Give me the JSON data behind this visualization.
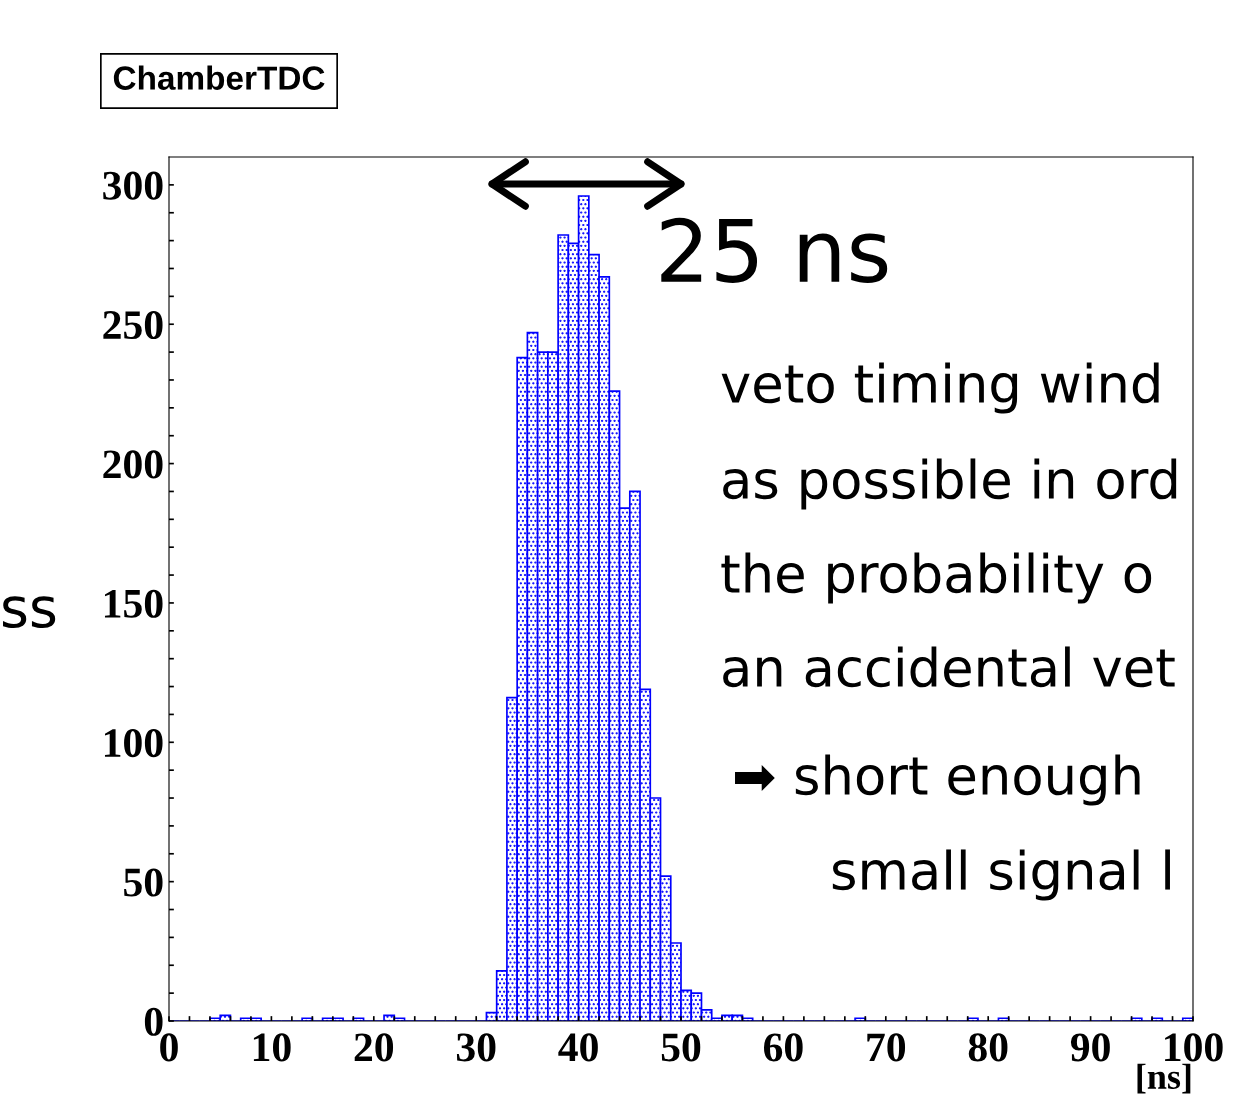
{
  "chart_data": {
    "type": "histogram",
    "title": "ChamberTDC",
    "xlabel": "[ns]",
    "bins": [
      0,
      1,
      2,
      3,
      4,
      5,
      6,
      7,
      8,
      9,
      10,
      11,
      12,
      13,
      14,
      15,
      16,
      17,
      18,
      19,
      20,
      21,
      22,
      23,
      24,
      25,
      26,
      27,
      28,
      29,
      30,
      31,
      32,
      33,
      34,
      35,
      36,
      37,
      38,
      39,
      40,
      41,
      42,
      43,
      44,
      45,
      46,
      47,
      48,
      49,
      50,
      51,
      52,
      53,
      54,
      55,
      56,
      57,
      58,
      59,
      60,
      61,
      62,
      63,
      64,
      65,
      66,
      67,
      68,
      69,
      70,
      71,
      72,
      73,
      74,
      75,
      76,
      77,
      78,
      79,
      80,
      81,
      82,
      83,
      84,
      85,
      86,
      87,
      88,
      89,
      90,
      91,
      92,
      93,
      94,
      95,
      96,
      97,
      98,
      99,
      100
    ],
    "values": [
      0,
      0,
      0,
      0,
      1,
      2,
      0,
      1,
      1,
      0,
      0,
      0,
      0,
      1,
      0,
      1,
      1,
      0,
      1,
      0,
      0,
      2,
      1,
      0,
      0,
      0,
      0,
      0,
      0,
      0,
      0,
      3,
      18,
      116,
      238,
      247,
      240,
      240,
      282,
      279,
      296,
      275,
      267,
      226,
      184,
      190,
      119,
      80,
      52,
      28,
      11,
      10,
      4,
      1,
      2,
      2,
      1,
      0,
      0,
      0,
      0,
      0,
      0,
      0,
      0,
      0,
      0,
      1,
      0,
      0,
      0,
      0,
      0,
      0,
      0,
      0,
      0,
      0,
      1,
      0,
      0,
      1,
      0,
      0,
      0,
      0,
      0,
      0,
      0,
      0,
      0,
      0,
      0,
      0,
      1,
      0,
      1,
      0,
      0,
      1
    ],
    "color": "#0000ff",
    "xlim": [
      0,
      100
    ],
    "ylim": [
      0,
      310
    ],
    "xticks": [
      0,
      {
        "value": 2,
        "label": null
      },
      {
        "value": 4,
        "label": null
      },
      {
        "value": 6,
        "label": null
      },
      {
        "value": 8,
        "label": null
      },
      10,
      {
        "value": 12,
        "label": null
      },
      {
        "value": 14,
        "label": null
      },
      {
        "value": 16,
        "label": null
      },
      {
        "value": 18,
        "label": null
      },
      20,
      {
        "value": 22,
        "label": null
      },
      {
        "value": 24,
        "label": null
      },
      {
        "value": 26,
        "label": null
      },
      {
        "value": 28,
        "label": null
      },
      30,
      {
        "value": 32,
        "label": null
      },
      {
        "value": 34,
        "label": null
      },
      {
        "value": 36,
        "label": null
      },
      {
        "value": 38,
        "label": null
      },
      40,
      {
        "value": 42,
        "label": null
      },
      {
        "value": 44,
        "label": null
      },
      {
        "value": 46,
        "label": null
      },
      {
        "value": 48,
        "label": null
      },
      50,
      {
        "value": 52,
        "label": null
      },
      {
        "value": 54,
        "label": null
      },
      {
        "value": 56,
        "label": null
      },
      {
        "value": 58,
        "label": null
      },
      60,
      {
        "value": 62,
        "label": null
      },
      {
        "value": 64,
        "label": null
      },
      {
        "value": 66,
        "label": null
      },
      {
        "value": 68,
        "label": null
      },
      70,
      {
        "value": 72,
        "label": null
      },
      {
        "value": 74,
        "label": null
      },
      {
        "value": 76,
        "label": null
      },
      {
        "value": 78,
        "label": null
      },
      80,
      {
        "value": 82,
        "label": null
      },
      {
        "value": 84,
        "label": null
      },
      {
        "value": 86,
        "label": null
      },
      {
        "value": 88,
        "label": null
      },
      90,
      {
        "value": 92,
        "label": null
      },
      {
        "value": 94,
        "label": null
      },
      {
        "value": 96,
        "label": null
      },
      {
        "value": 98,
        "label": null
      },
      100
    ],
    "yticks": [
      0,
      {
        "value": 10,
        "label": null
      },
      {
        "value": 20,
        "label": null
      },
      {
        "value": 30,
        "label": null
      },
      {
        "value": 40,
        "label": null
      },
      50,
      {
        "value": 60,
        "label": null
      },
      {
        "value": 70,
        "label": null
      },
      {
        "value": 80,
        "label": null
      },
      {
        "value": 90,
        "label": null
      },
      100,
      {
        "value": 110,
        "label": null
      },
      {
        "value": 120,
        "label": null
      },
      {
        "value": 130,
        "label": null
      },
      {
        "value": 140,
        "label": null
      },
      150,
      {
        "value": 160,
        "label": null
      },
      {
        "value": 170,
        "label": null
      },
      {
        "value": 180,
        "label": null
      },
      {
        "value": 190,
        "label": null
      },
      200,
      {
        "value": 210,
        "label": null
      },
      {
        "value": 220,
        "label": null
      },
      {
        "value": 230,
        "label": null
      },
      {
        "value": 240,
        "label": null
      },
      250,
      {
        "value": 260,
        "label": null
      },
      {
        "value": 270,
        "label": null
      },
      {
        "value": 280,
        "label": null
      },
      {
        "value": 290,
        "label": null
      },
      300
    ],
    "grid": false,
    "annotations": [
      "25 ns",
      "veto timing wind",
      "as possible in ord",
      "the probability o",
      "an accidental vet",
      "➡ short enough",
      "small signal l",
      "ss"
    ]
  }
}
